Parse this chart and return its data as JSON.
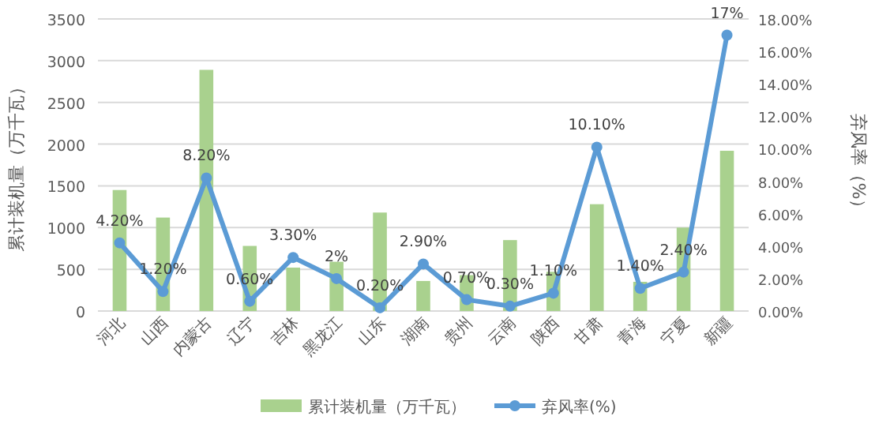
{
  "chart_data": {
    "type": "bar",
    "ylabel": "累计装机量（万千瓦）",
    "y2label": "弃风率（%）",
    "categories": [
      "河北",
      "山西",
      "内蒙古",
      "辽宁",
      "吉林",
      "黑龙江",
      "山东",
      "湖南",
      "贵州",
      "云南",
      "陕西",
      "甘肃",
      "青海",
      "宁夏",
      "新疆"
    ],
    "series": [
      {
        "name": "累计装机量（万千瓦）",
        "color": "#a9d18e",
        "values": [
          1450,
          1120,
          2890,
          780,
          520,
          590,
          1180,
          360,
          430,
          850,
          470,
          1280,
          350,
          1000,
          1920
        ]
      },
      {
        "name": "弃风率(%)",
        "type": "line",
        "axis": "y2",
        "color": "#5b9bd5",
        "marker": "circle",
        "values": [
          4.2,
          1.2,
          8.2,
          0.6,
          3.3,
          2,
          0.2,
          2.9,
          0.7,
          0.3,
          1.1,
          10.1,
          1.4,
          2.4,
          17
        ],
        "value_labels": [
          "4.20%",
          "1.20%",
          "8.20%",
          "0.60%",
          "3.30%",
          "2%",
          "0.20%",
          "2.90%",
          "0.70%",
          "0.30%",
          "1.10%",
          "10.10%",
          "1.40%",
          "2.40%",
          "17%"
        ]
      }
    ],
    "ylim": [
      0,
      3500
    ],
    "yticks": [
      0,
      500,
      1000,
      1500,
      2000,
      2500,
      3000,
      3500
    ],
    "y2lim": [
      0,
      18
    ],
    "y2ticks": [
      {
        "value": 0,
        "label": "0.00%"
      },
      {
        "value": 2,
        "label": "2.00%"
      },
      {
        "value": 4,
        "label": "4.00%"
      },
      {
        "value": 6,
        "label": "6.00%"
      },
      {
        "value": 8,
        "label": "8.00%"
      },
      {
        "value": 10,
        "label": "10.00%"
      },
      {
        "value": 12,
        "label": "12.00%"
      },
      {
        "value": 14,
        "label": "14.00%"
      },
      {
        "value": 16,
        "label": "16.00%"
      },
      {
        "value": 18,
        "label": "18.00%"
      }
    ],
    "grid": "y",
    "legend": "bottom"
  }
}
